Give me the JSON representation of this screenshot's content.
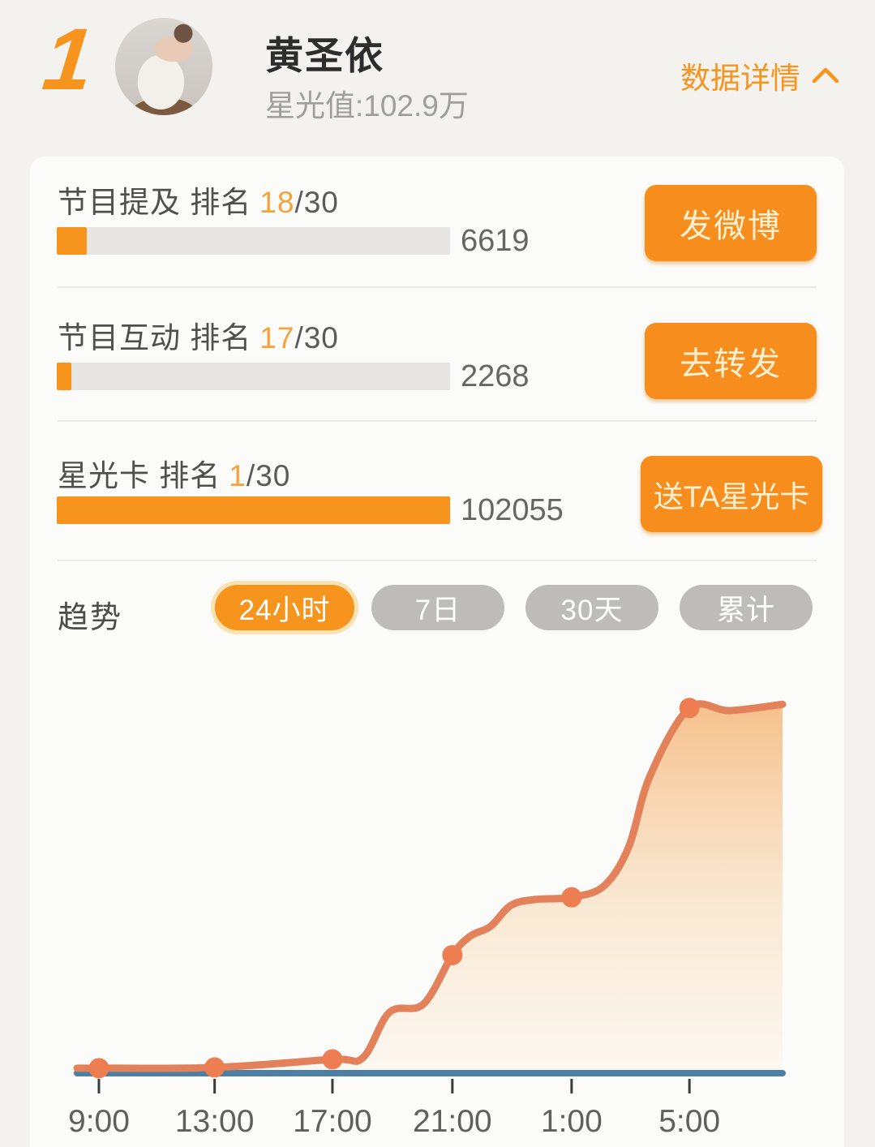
{
  "header": {
    "rank": "1",
    "name": "黄圣依",
    "star_value_label": "星光值:102.9万",
    "detail_link_label": "数据详情"
  },
  "stats": {
    "rows": [
      {
        "label": "节目提及 排名",
        "rank": "18",
        "rank_total": "/30",
        "value": "6619",
        "button_label": "发微博",
        "bar_style": "width:7.6%"
      },
      {
        "label": "节目互动 排名",
        "rank": "17",
        "rank_total": "/30",
        "value": "2268",
        "button_label": "去转发",
        "bar_style": "width:3.7%"
      },
      {
        "label": "星光卡 排名",
        "rank": "1",
        "rank_total": "/30",
        "value": "102055",
        "button_label": "送TA星光卡",
        "bar_style": "width:100%"
      }
    ]
  },
  "trend": {
    "label": "趋势",
    "tabs": [
      {
        "label": "24小时",
        "active": true
      },
      {
        "label": "7日",
        "active": false
      },
      {
        "label": "30天",
        "active": false
      },
      {
        "label": "累计",
        "active": false
      }
    ]
  },
  "chart_data": {
    "type": "area",
    "x_tick_labels": [
      "9:00",
      "13:00",
      "17:00",
      "21:00",
      "1:00",
      "5:00"
    ],
    "x_ticks": [
      {
        "label": "9:00",
        "x": 0.031
      },
      {
        "label": "13:00",
        "x": 0.195
      },
      {
        "label": "17:00",
        "x": 0.362
      },
      {
        "label": "21:00",
        "x": 0.532
      },
      {
        "label": "1:00",
        "x": 0.701
      },
      {
        "label": "5:00",
        "x": 0.868
      }
    ],
    "y_axis_visible": false,
    "ylim": [
      0,
      1
    ],
    "series": [
      {
        "name": "star-value-trend",
        "color": "#e2815a",
        "marker_color": "#ee7e52",
        "points": [
          {
            "x": 0.0,
            "v": 0.007
          },
          {
            "x": 0.031,
            "v": 0.007,
            "marker": true
          },
          {
            "x": 0.195,
            "v": 0.009,
            "marker": true
          },
          {
            "x": 0.362,
            "v": 0.031,
            "marker": true
          },
          {
            "x": 0.405,
            "v": 0.035
          },
          {
            "x": 0.443,
            "v": 0.159
          },
          {
            "x": 0.491,
            "v": 0.181
          },
          {
            "x": 0.532,
            "v": 0.314,
            "marker": true
          },
          {
            "x": 0.557,
            "v": 0.365
          },
          {
            "x": 0.586,
            "v": 0.392
          },
          {
            "x": 0.615,
            "v": 0.449
          },
          {
            "x": 0.649,
            "v": 0.465
          },
          {
            "x": 0.701,
            "v": 0.471,
            "marker": true
          },
          {
            "x": 0.747,
            "v": 0.502
          },
          {
            "x": 0.782,
            "v": 0.608
          },
          {
            "x": 0.812,
            "v": 0.8
          },
          {
            "x": 0.868,
            "v": 0.985,
            "marker": true
          },
          {
            "x": 0.925,
            "v": 0.978
          },
          {
            "x": 1.0,
            "v": 0.995
          }
        ]
      },
      {
        "name": "baseline",
        "color": "#4c7fa5",
        "points": [
          {
            "x": 0.0,
            "v": 0
          },
          {
            "x": 1.0,
            "v": 0
          }
        ]
      }
    ]
  },
  "colors": {
    "accent_orange": "#f7941e",
    "button_orange": "#f78d1c",
    "line_salmon": "#e2815a",
    "marker_salmon": "#ee7e52",
    "baseline_blue": "#4c7fa5",
    "inactive_pill_gray": "#bdbcba",
    "bar_track_gray": "#e6e5e2"
  }
}
